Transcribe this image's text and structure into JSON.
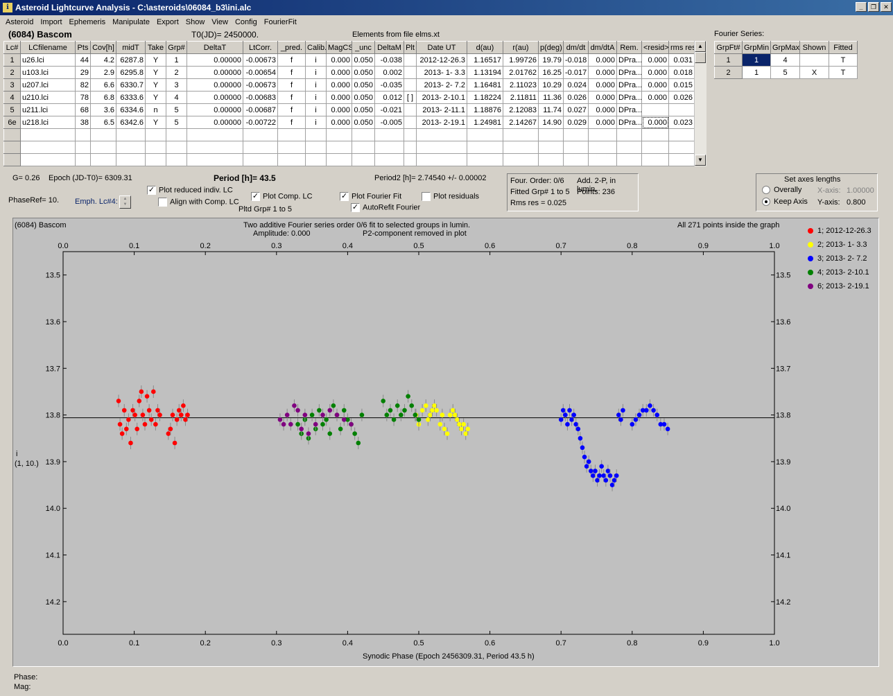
{
  "window": {
    "title": "Asteroid Lightcurve Analysis - C:\\asteroids\\06084_b3\\ini.alc"
  },
  "menu": [
    "Asteroid",
    "Import",
    "Ephemeris",
    "Manipulate",
    "Export",
    "Show",
    "View",
    "Config",
    "FourierFit"
  ],
  "header": {
    "asteroid": "(6084) Bascom",
    "t0": "T0(JD)= 2450000.",
    "elements": "Elements from file elms.xt",
    "fourier_label": "Fourier Series:"
  },
  "lc_table": {
    "columns": [
      "Lc#",
      "LCfilename",
      "Pts",
      "Cov[h]",
      "midT",
      "Take",
      "Grp#",
      "DeltaT",
      "LtCorr.",
      "_pred.",
      "Calib.",
      "MagCS",
      "_unc",
      "DeltaM",
      "Plt",
      "Date UT",
      "d(au)",
      "r(au)",
      "p(deg)",
      "dm/dt",
      "dm/dtA",
      "Rem.",
      "<resid>",
      "rms res"
    ],
    "rows": [
      [
        "1",
        "u26.lci",
        "44",
        "4.2",
        "6287.8",
        "Y",
        "1",
        "0.00000",
        "-0.00673",
        "f",
        "i",
        "0.000",
        "0.050",
        "-0.038",
        "",
        "2012-12-26.3",
        "1.16517",
        "1.99726",
        "19.79",
        "-0.018",
        "0.000",
        "DPra...",
        "0.000",
        "0.031"
      ],
      [
        "2",
        "u103.lci",
        "29",
        "2.9",
        "6295.8",
        "Y",
        "2",
        "0.00000",
        "-0.00654",
        "f",
        "i",
        "0.000",
        "0.050",
        "0.002",
        "",
        "2013- 1- 3.3",
        "1.13194",
        "2.01762",
        "16.25",
        "-0.017",
        "0.000",
        "DPra...",
        "0.000",
        "0.018"
      ],
      [
        "3",
        "u207.lci",
        "82",
        "6.6",
        "6330.7",
        "Y",
        "3",
        "0.00000",
        "-0.00673",
        "f",
        "i",
        "0.000",
        "0.050",
        "-0.035",
        "",
        "2013- 2- 7.2",
        "1.16481",
        "2.11023",
        "10.29",
        "0.024",
        "0.000",
        "DPra...",
        "0.000",
        "0.015"
      ],
      [
        "4",
        "u210.lci",
        "78",
        "6.8",
        "6333.6",
        "Y",
        "4",
        "0.00000",
        "-0.00683",
        "f",
        "i",
        "0.000",
        "0.050",
        "0.012",
        "[ ]",
        "2013- 2-10.1",
        "1.18224",
        "2.11811",
        "11.36",
        "0.026",
        "0.000",
        "DPra...",
        "0.000",
        "0.026"
      ],
      [
        "5",
        "u211.lci",
        "68",
        "3.6",
        "6334.6",
        "n",
        "5",
        "0.00000",
        "-0.00687",
        "f",
        "i",
        "0.000",
        "0.050",
        "-0.021",
        "",
        "2013- 2-11.1",
        "1.18876",
        "2.12083",
        "11.74",
        "0.027",
        "0.000",
        "DPra...",
        "",
        ""
      ],
      [
        "6e",
        "u218.lci",
        "38",
        "6.5",
        "6342.6",
        "Y",
        "5",
        "0.00000",
        "-0.00722",
        "f",
        "i",
        "0.000",
        "0.050",
        "-0.005",
        "",
        "2013- 2-19.1",
        "1.24981",
        "2.14267",
        "14.90",
        "0.029",
        "0.000",
        "DPra...",
        "0.000",
        "0.023"
      ]
    ]
  },
  "fourier_table": {
    "columns": [
      "GrpFt#",
      "GrpMin",
      "GrpMax",
      "Shown",
      "Fitted"
    ],
    "rows": [
      [
        "1",
        "1",
        "4",
        "",
        "T"
      ],
      [
        "2",
        "1",
        "5",
        "X",
        "T"
      ]
    ]
  },
  "info": {
    "g": "G= 0.26",
    "epoch": "Epoch (JD-T0)= 6309.31",
    "period": "Period [h]= 43.5",
    "period2": "Period2 [h]= 2.74540 +/- 0.00002",
    "phaseref": "PhaseRef= 10.",
    "emph": "Emph. Lc#4:",
    "plot_reduced": "Plot reduced indiv. LC",
    "align": "Align with Comp. LC",
    "plot_comp": "Plot Comp. LC",
    "pltd_grp": "Pltd Grp#  1   to   5",
    "plot_fourier": "Plot Fourier Fit",
    "autorefit": "AutoRefit Fourier",
    "plot_residuals": "Plot residuals"
  },
  "fit_box": {
    "order": "Four. Order:  0/6",
    "add2p": "Add. 2-P, in lumin.",
    "fitted": "Fitted Grp# 1 to 5",
    "points": "Points: 236",
    "rms": "Rms res     = 0.025"
  },
  "axes_box": {
    "title": "Set axes lengths",
    "overally": "Overally",
    "keep": "Keep Axis",
    "xaxis_label": "X-axis:",
    "xaxis_value": "1.00000",
    "yaxis_label": "Y-axis:",
    "yaxis_value": "0.800"
  },
  "plot": {
    "name": "(6084) Bascom",
    "subtitle1": "Two additive Fourier series order 0/6 fit to selected groups in lumin.",
    "amplitude": "Amplitude: 0.000",
    "p2": "P2-component removed in plot",
    "inside": "All 271 points inside the graph",
    "ylabel1": "i",
    "ylabel2": "(1, 10.)",
    "xlabel": "Synodic Phase (Epoch 2456309.31, Period 43.5 h)"
  },
  "status": {
    "phase": "Phase:",
    "mag": "Mag:"
  },
  "chart_data": {
    "type": "scatter",
    "xlabel": "Synodic Phase (Epoch 2456309.31, Period 43.5 h)",
    "ylabel": "i",
    "xlim": [
      0.0,
      1.0
    ],
    "ylim": [
      14.27,
      13.45
    ],
    "x_ticks": [
      "0.0",
      "0.1",
      "0.2",
      "0.3",
      "0.4",
      "0.5",
      "0.6",
      "0.7",
      "0.8",
      "0.9",
      "1.0"
    ],
    "y_ticks": [
      "13.5",
      "13.6",
      "13.7",
      "13.8",
      "13.9",
      "14.0",
      "14.1",
      "14.2"
    ],
    "fit_line_y": 13.806,
    "legend_position": "right",
    "series": [
      {
        "name": "1; 2012-12-26.3",
        "color": "#ff0000",
        "x": [
          0.078,
          0.08,
          0.083,
          0.086,
          0.089,
          0.092,
          0.095,
          0.098,
          0.101,
          0.104,
          0.107,
          0.11,
          0.112,
          0.115,
          0.118,
          0.121,
          0.124,
          0.127,
          0.13,
          0.133,
          0.136,
          0.148,
          0.151,
          0.154,
          0.157,
          0.16,
          0.163,
          0.166,
          0.169,
          0.172,
          0.175
        ],
        "y": [
          13.77,
          13.82,
          13.84,
          13.79,
          13.83,
          13.81,
          13.86,
          13.79,
          13.8,
          13.83,
          13.77,
          13.75,
          13.8,
          13.82,
          13.76,
          13.79,
          13.81,
          13.75,
          13.82,
          13.79,
          13.8,
          13.84,
          13.83,
          13.8,
          13.86,
          13.81,
          13.79,
          13.8,
          13.78,
          13.81,
          13.8
        ]
      },
      {
        "name": "2; 2013- 1- 3.3",
        "color": "#ffff00",
        "x": [
          0.496,
          0.5,
          0.505,
          0.51,
          0.513,
          0.516,
          0.519,
          0.522,
          0.525,
          0.53,
          0.533,
          0.536,
          0.54,
          0.544,
          0.548,
          0.551,
          0.554,
          0.557,
          0.56,
          0.563,
          0.566,
          0.569
        ],
        "y": [
          13.8,
          13.82,
          13.79,
          13.78,
          13.81,
          13.8,
          13.79,
          13.78,
          13.79,
          13.82,
          13.8,
          13.83,
          13.84,
          13.8,
          13.79,
          13.8,
          13.81,
          13.82,
          13.83,
          13.82,
          13.84,
          13.83
        ]
      },
      {
        "name": "3; 2013- 2- 7.2",
        "color": "#0000ff",
        "x": [
          0.7,
          0.703,
          0.706,
          0.709,
          0.712,
          0.715,
          0.718,
          0.721,
          0.724,
          0.727,
          0.73,
          0.733,
          0.736,
          0.739,
          0.742,
          0.745,
          0.748,
          0.751,
          0.754,
          0.757,
          0.76,
          0.763,
          0.766,
          0.769,
          0.772,
          0.775,
          0.778,
          0.781,
          0.784,
          0.787,
          0.8,
          0.805,
          0.81,
          0.815,
          0.82,
          0.825,
          0.83,
          0.835,
          0.84,
          0.845,
          0.85
        ],
        "y": [
          13.81,
          13.79,
          13.8,
          13.82,
          13.79,
          13.81,
          13.8,
          13.82,
          13.83,
          13.85,
          13.87,
          13.89,
          13.91,
          13.9,
          13.92,
          13.93,
          13.92,
          13.94,
          13.93,
          13.91,
          13.93,
          13.94,
          13.92,
          13.93,
          13.95,
          13.94,
          13.93,
          13.8,
          13.81,
          13.79,
          13.82,
          13.81,
          13.8,
          13.79,
          13.79,
          13.78,
          13.79,
          13.8,
          13.82,
          13.82,
          13.83
        ]
      },
      {
        "name": "4; 2013- 2-10.1",
        "color": "#008000",
        "x": [
          0.33,
          0.335,
          0.34,
          0.345,
          0.35,
          0.355,
          0.36,
          0.365,
          0.37,
          0.375,
          0.38,
          0.385,
          0.39,
          0.395,
          0.4,
          0.405,
          0.41,
          0.415,
          0.42,
          0.45,
          0.455,
          0.46,
          0.465,
          0.47,
          0.475,
          0.48,
          0.485,
          0.49,
          0.495,
          0.5
        ],
        "y": [
          13.82,
          13.84,
          13.81,
          13.85,
          13.8,
          13.83,
          13.79,
          13.82,
          13.81,
          13.84,
          13.78,
          13.8,
          13.83,
          13.79,
          13.81,
          13.82,
          13.84,
          13.86,
          13.8,
          13.77,
          13.8,
          13.79,
          13.81,
          13.78,
          13.8,
          13.79,
          13.76,
          13.78,
          13.8,
          13.81
        ]
      },
      {
        "name": "6; 2013- 2-19.1",
        "color": "#800080",
        "x": [
          0.305,
          0.31,
          0.315,
          0.32,
          0.325,
          0.33,
          0.335,
          0.34,
          0.345,
          0.355,
          0.365,
          0.375,
          0.385,
          0.395,
          0.405
        ],
        "y": [
          13.81,
          13.82,
          13.8,
          13.82,
          13.78,
          13.79,
          13.83,
          13.8,
          13.84,
          13.82,
          13.8,
          13.79,
          13.8,
          13.81,
          13.82
        ]
      }
    ]
  }
}
